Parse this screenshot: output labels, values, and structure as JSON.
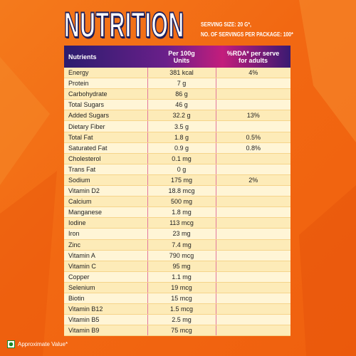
{
  "header": {
    "title": "NUTRITION",
    "serving_size": "SERVING SIZE: 20 G*,",
    "servings_per_package": "NO. OF SERVINGS PER PACKAGE: 100*"
  },
  "table": {
    "columns": [
      [
        "Nutrients"
      ],
      [
        "Per 100g",
        "Units"
      ],
      [
        "%RDA* per serve",
        "for adults"
      ]
    ],
    "rows": [
      {
        "nutrient": "Energy",
        "amount": "381 kcal",
        "rda": "4%"
      },
      {
        "nutrient": "Protein",
        "amount": "7 g"
      },
      {
        "nutrient": "Carbohydrate",
        "amount": "86 g"
      },
      {
        "nutrient": "Total Sugars",
        "amount": "46 g"
      },
      {
        "nutrient": "Added Sugars",
        "amount": "32.2 g",
        "rda": "13%"
      },
      {
        "nutrient": "Dietary Fiber",
        "amount": "3.5 g"
      },
      {
        "nutrient": "Total Fat",
        "amount": "1.8 g",
        "rda": "0.5%"
      },
      {
        "nutrient": "Saturated Fat",
        "amount": "0.9 g",
        "rda": "0.8%"
      },
      {
        "nutrient": "Cholesterol",
        "amount": "0.1 mg"
      },
      {
        "nutrient": "Trans Fat",
        "amount": "0 g"
      },
      {
        "nutrient": "Sodium",
        "amount": "175 mg",
        "rda": "2%"
      },
      {
        "nutrient": "Vitamin D2",
        "amount": "18.8 mcg"
      },
      {
        "nutrient": "Calcium",
        "amount": "500 mg"
      },
      {
        "nutrient": "Manganese",
        "amount": "1.8 mg"
      },
      {
        "nutrient": "Iodine",
        "amount": "113 mcg"
      },
      {
        "nutrient": "Iron",
        "amount": "23 mg"
      },
      {
        "nutrient": "Zinc",
        "amount": "7.4 mg"
      },
      {
        "nutrient": "Vitamin A",
        "amount": "790 mcg"
      },
      {
        "nutrient": "Vitamin C",
        "amount": "95 mg"
      },
      {
        "nutrient": "Copper",
        "amount": "1.1 mg"
      },
      {
        "nutrient": "Selenium",
        "amount": "19 mcg"
      },
      {
        "nutrient": "Biotin",
        "amount": "15 mcg"
      },
      {
        "nutrient": "Vitamin B12",
        "amount": "1.5 mcg"
      },
      {
        "nutrient": "Vitamin B5",
        "amount": "2.5 mg"
      },
      {
        "nutrient": "Vitamin B9",
        "amount": "75 mcg"
      }
    ]
  },
  "footer": {
    "note": "Approximate Value*"
  }
}
